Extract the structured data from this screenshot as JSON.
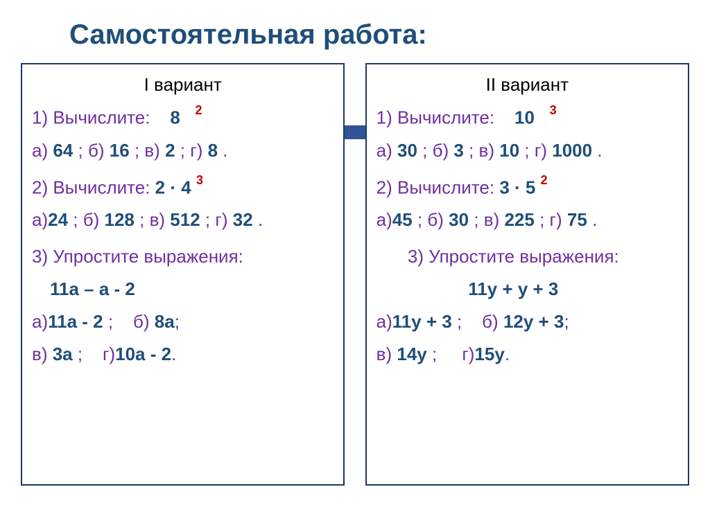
{
  "title_text": "Самостоятельная работа:",
  "title_color": "#1f4e79",
  "purple": "#7030a0",
  "blue": "#1f4e79",
  "red": "#c00000",
  "v1": {
    "header": "I вариант",
    "q1_label": "1) Вычислите:",
    "q1_base": "8",
    "q1_exp": "2",
    "q1_opts_a": "а)",
    "q1_a": "64",
    "q1_opts_b": "; б)",
    "q1_b": "16",
    "q1_opts_c": "; в)",
    "q1_c": "2",
    "q1_opts_d": "; г)",
    "q1_d": "8",
    "q1_end": ".",
    "q2_label": "2) Вычислите:",
    "q2_a1": "2",
    "q2_dot": "·",
    "q2_a2": "4",
    "q2_exp": "3",
    "q2o_a": "а)",
    "q2_av": "24",
    "q2o_b": "; б)",
    "q2_bv": "128",
    "q2o_c": "; в)",
    "q2_cv": "512",
    "q2o_d": "; г)",
    "q2_dv": "32",
    "q2_end": ".",
    "q3_label": "3) Упростите выражения:",
    "q3_expr": "11a – a - 2",
    "q3o_a": "а)",
    "q3_av": "11a - 2",
    "q3_sep1": ";    б)",
    "q3_bv": "8a",
    "q3_sep2": ";",
    "q3o_c": "в)",
    "q3_cv": "3a",
    "q3_sep3": ";    г)",
    "q3_dv": "10a - 2",
    "q3_end": "."
  },
  "v2": {
    "header": "II вариант",
    "q1_label": "1) Вычислите:",
    "q1_base": "10",
    "q1_exp": "3",
    "q1_opts_a": "а)",
    "q1_a": "30",
    "q1_opts_b": "; б)",
    "q1_b": "3",
    "q1_opts_c": "; в)",
    "q1_c": "10",
    "q1_opts_d": "; г)",
    "q1_d": "1000",
    "q1_end": ".",
    "q2_label": "2) Вычислите:",
    "q2_a1": "3",
    "q2_dot": "·",
    "q2_a2": "5",
    "q2_exp": "2",
    "q2o_a": "а)",
    "q2_av": "45",
    "q2o_b": "; б)",
    "q2_bv": "30",
    "q2o_c": "; в)",
    "q2_cv": "225",
    "q2o_d": "; г)",
    "q2_dv": "75",
    "q2_end": ".",
    "q3_label": "3) Упростите выражения:",
    "q3_expr": "11y + y + 3",
    "q3o_a": "а)",
    "q3_av": "11y + 3",
    "q3_sep1": ";    б)",
    "q3_bv": "12y + 3",
    "q3_sep2": ";",
    "q3o_c": "в)",
    "q3_cv": "14y",
    "q3_sep3": ";     г)",
    "q3_dv": "15y",
    "q3_end": "."
  }
}
